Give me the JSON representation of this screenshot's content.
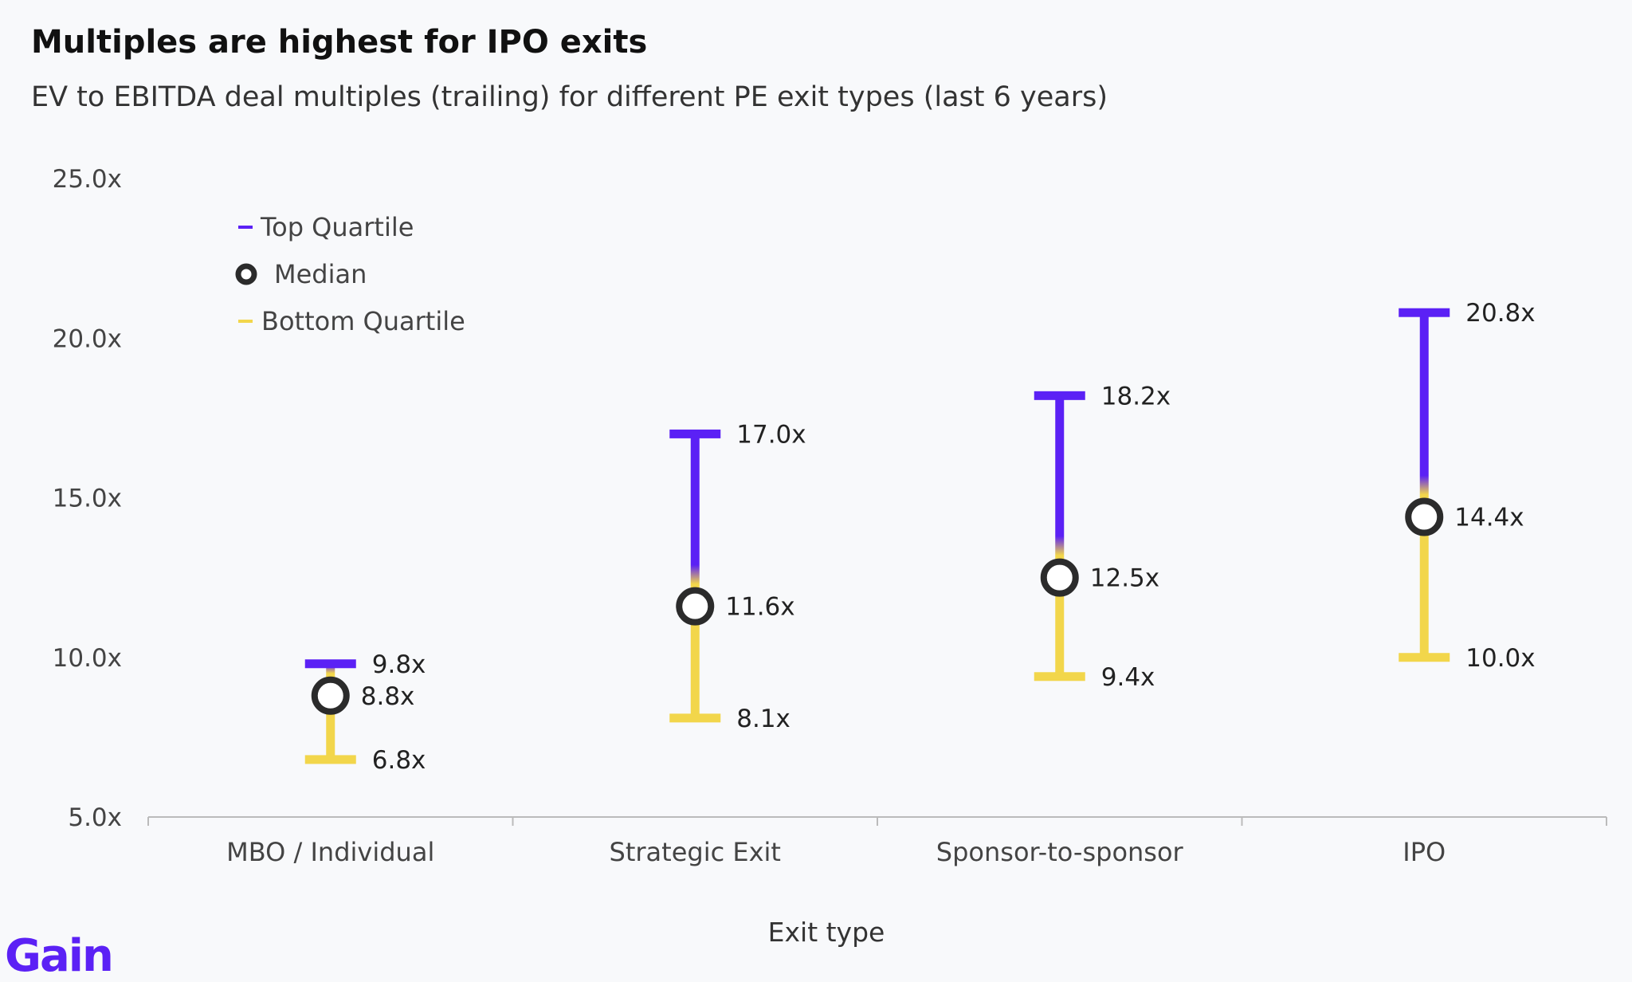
{
  "title": "Multiples are highest for IPO exits",
  "subtitle": "EV to EBITDA deal multiples (trailing) for different PE exit types (last 6 years)",
  "logo": "Gain",
  "colors": {
    "top": "#5b21f5",
    "bottom": "#f2d64b",
    "median": "#2b2b2b",
    "axis": "#bbbbbb"
  },
  "chart_data": {
    "type": "range",
    "title": "Multiples are highest for IPO exits",
    "subtitle": "EV to EBITDA deal multiples (trailing) for different PE exit types (last 6 years)",
    "xlabel": "Exit type",
    "ylabel": "",
    "ylim": [
      5.0,
      25.0
    ],
    "yticks": [
      5.0,
      10.0,
      15.0,
      20.0,
      25.0
    ],
    "ytick_labels": [
      "5.0x",
      "10.0x",
      "15.0x",
      "20.0x",
      "25.0x"
    ],
    "grid": false,
    "legend_placement": "top-left",
    "legend": [
      "Top Quartile",
      "Median",
      "Bottom Quartile"
    ],
    "categories": [
      "MBO / Individual",
      "Strategic Exit",
      "Sponsor-to-sponsor",
      "IPO"
    ],
    "series": [
      {
        "name": "Top Quartile",
        "values": [
          9.8,
          17.0,
          18.2,
          20.8
        ],
        "labels": [
          "9.8x",
          "17.0x",
          "18.2x",
          "20.8x"
        ]
      },
      {
        "name": "Median",
        "values": [
          8.8,
          11.6,
          12.5,
          14.4
        ],
        "labels": [
          "8.8x",
          "11.6x",
          "12.5x",
          "14.4x"
        ]
      },
      {
        "name": "Bottom Quartile",
        "values": [
          6.8,
          8.1,
          9.4,
          10.0
        ],
        "labels": [
          "6.8x",
          "8.1x",
          "9.4x",
          "10.0x"
        ]
      }
    ]
  }
}
